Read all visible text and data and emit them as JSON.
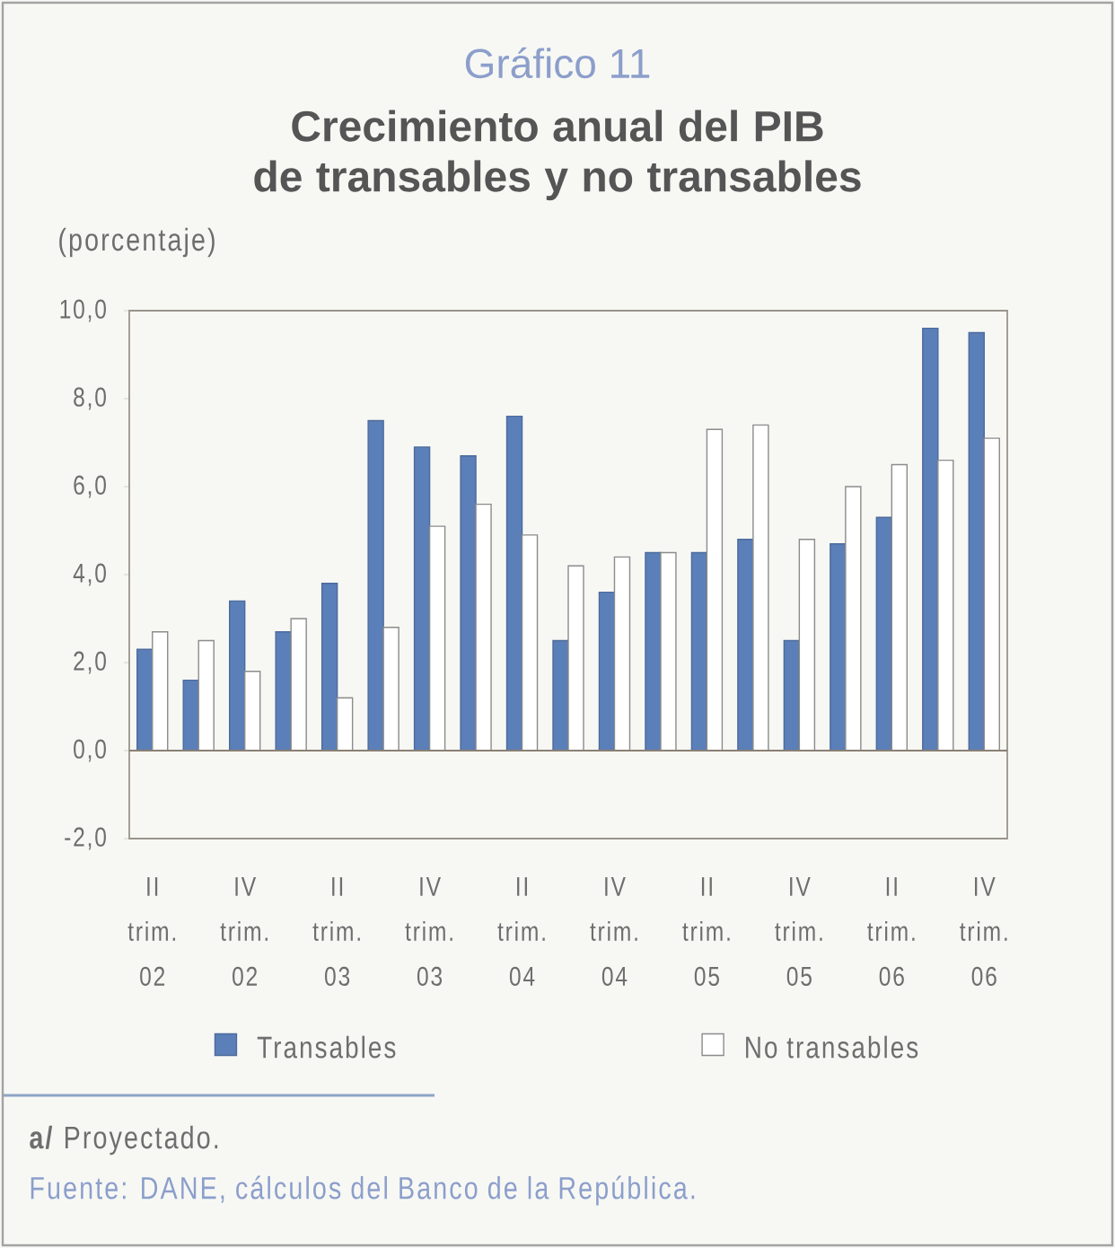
{
  "chart_data": {
    "type": "bar",
    "title": "Crecimiento anual del PIB de transables y no transables",
    "subtitle": "Gráfico 11",
    "ylabel": "(porcentaje)",
    "categories": [
      "II trim. 02",
      null,
      "IV trim. 02",
      null,
      "II trim. 03",
      null,
      "IV trim. 03",
      null,
      "II trim. 04",
      null,
      "IV trim. 04",
      null,
      "II trim. 05",
      null,
      "IV trim. 05",
      null,
      "II trim. 06",
      null,
      "IV trim. 06"
    ],
    "series": [
      {
        "name": "Transables",
        "color": "#5b7fb8",
        "values": [
          2.3,
          1.6,
          3.4,
          2.7,
          3.8,
          7.5,
          6.9,
          6.7,
          7.6,
          2.5,
          3.6,
          4.5,
          4.5,
          4.8,
          2.5,
          4.7,
          5.3,
          9.6,
          9.5
        ]
      },
      {
        "name": "No transables",
        "color": "#ffffff",
        "values": [
          2.7,
          2.5,
          1.8,
          3.0,
          1.2,
          2.8,
          5.1,
          5.6,
          4.9,
          4.2,
          4.4,
          4.5,
          7.3,
          7.4,
          4.8,
          6.0,
          6.5,
          6.6,
          7.1
        ]
      }
    ],
    "ylim": [
      -2,
      10
    ],
    "yticks": [
      {
        "value": -2,
        "label": "-2,0"
      },
      {
        "value": 0,
        "label": "0,0"
      },
      {
        "value": 2,
        "label": "2,0"
      },
      {
        "value": 4,
        "label": "4,0"
      },
      {
        "value": 6,
        "label": "6,0"
      },
      {
        "value": 8,
        "label": "8,0"
      },
      {
        "value": 10,
        "label": "10,0"
      }
    ],
    "legend": "bottom",
    "annotations": [
      "**a/** Proyectado.",
      "Fuente: DANE, cálculos del Banco de la República."
    ]
  }
}
